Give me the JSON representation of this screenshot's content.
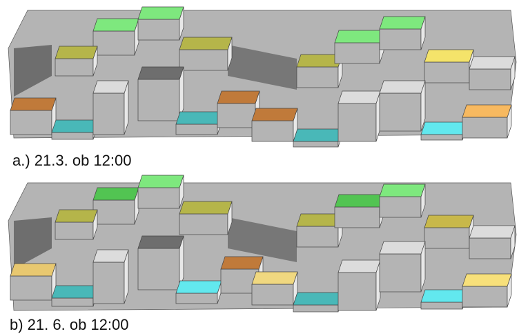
{
  "captions": {
    "a": "a.) 21.3. ob 12:00",
    "b": "b) 21. 6. ob 12:00"
  }
}
